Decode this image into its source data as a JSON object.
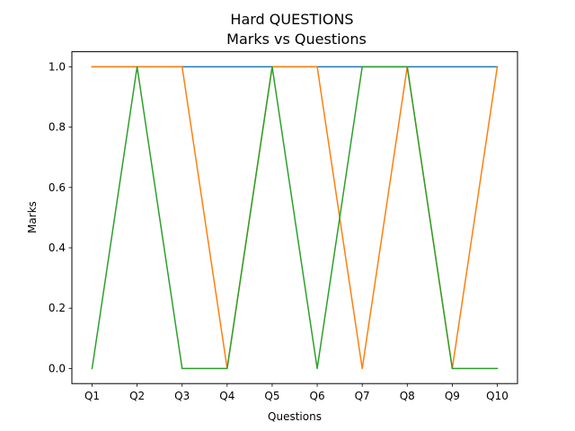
{
  "chart_data": {
    "type": "line",
    "title": "Hard QUESTIONS",
    "subtitle": "Marks vs Questions",
    "xlabel": "Questions",
    "ylabel": "Marks",
    "ylim": [
      -0.05,
      1.05
    ],
    "yticks": [
      "0.0",
      "0.2",
      "0.4",
      "0.6",
      "0.8",
      "1.0"
    ],
    "grid": false,
    "legend": "none",
    "categories": [
      "Q1",
      "Q2",
      "Q3",
      "Q4",
      "Q5",
      "Q6",
      "Q7",
      "Q8",
      "Q9",
      "Q10"
    ],
    "series": [
      {
        "color": "#1f77b4",
        "values": [
          1,
          1,
          1,
          1,
          1,
          1,
          1,
          1,
          1,
          1
        ]
      },
      {
        "color": "#ff7f0e",
        "values": [
          1,
          1,
          1,
          0,
          1,
          1,
          0,
          1,
          0,
          1
        ]
      },
      {
        "color": "#2ca02c",
        "values": [
          0,
          1,
          0,
          0,
          1,
          0,
          1,
          1,
          0,
          0
        ]
      }
    ]
  }
}
